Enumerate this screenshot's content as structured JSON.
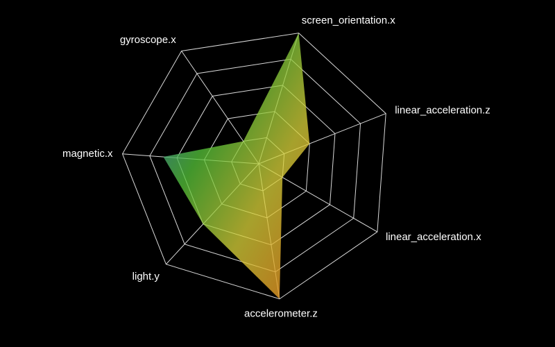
{
  "chart_data": {
    "type": "radar",
    "axes": [
      "screen_orientation.x",
      "linear_acceleration.z",
      "linear_acceleration.x",
      "accelerometer.z",
      "light.y",
      "magnetic.x",
      "gyroscope.x"
    ],
    "rings": 5,
    "max": 1.0,
    "values": [
      1.0,
      0.4,
      0.2,
      1.0,
      0.6,
      0.7,
      0.2
    ],
    "grid": true,
    "legend": "none",
    "colors": {
      "background": "#000000",
      "grid": "#d9d9d9",
      "label": "#ffffff",
      "gradient": [
        "#2f6fd6",
        "#55c43a",
        "#d9d23a",
        "#e07a1a"
      ]
    }
  }
}
